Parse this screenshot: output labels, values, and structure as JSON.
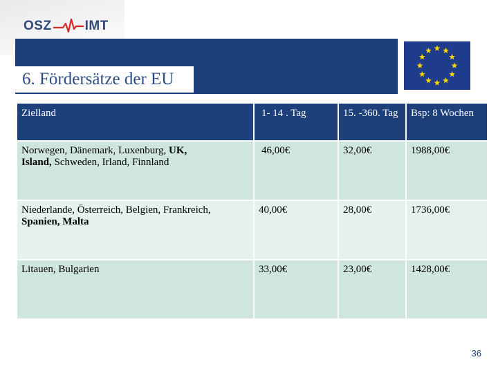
{
  "header": {
    "logo_left": "OSZ",
    "logo_right": "IMT",
    "dot": ".",
    "title": "6. Fördersätze der EU"
  },
  "colors": {
    "title_bar": "#1d3f7a",
    "row_dark": "#cfe5df",
    "row_light": "#e4f1ee",
    "flag_star": "#ffd700",
    "flag_field": "#1f3b8c"
  },
  "table": {
    "headers": {
      "country": "Zielland",
      "day1_14": "1- 14 . Tag",
      "day15_360": "15. -360. Tag",
      "example": "Bsp: 8 Wochen"
    },
    "rows": [
      {
        "countries_a": "Norwegen, Dänemark, Luxenburg, ",
        "countries_a_bold": "UK,",
        "countries_b_bold": "Island,",
        "countries_b": " Schweden, Irland, Finnland",
        "day1_14": "46,00€",
        "day15_360": "32,00€",
        "example": "1988,00€"
      },
      {
        "countries_a": "Niederlande, Österreich, Belgien, Frankreich,",
        "countries_b_bold": "Spanien, Malta",
        "day1_14": "40,00€",
        "day15_360": "28,00€",
        "example": "1736,00€"
      },
      {
        "countries_a": "Litauen, Bulgarien",
        "day1_14": "33,00€",
        "day15_360": "23,00€",
        "example": "1428,00€"
      }
    ]
  },
  "footer": {
    "page_number": "36"
  }
}
